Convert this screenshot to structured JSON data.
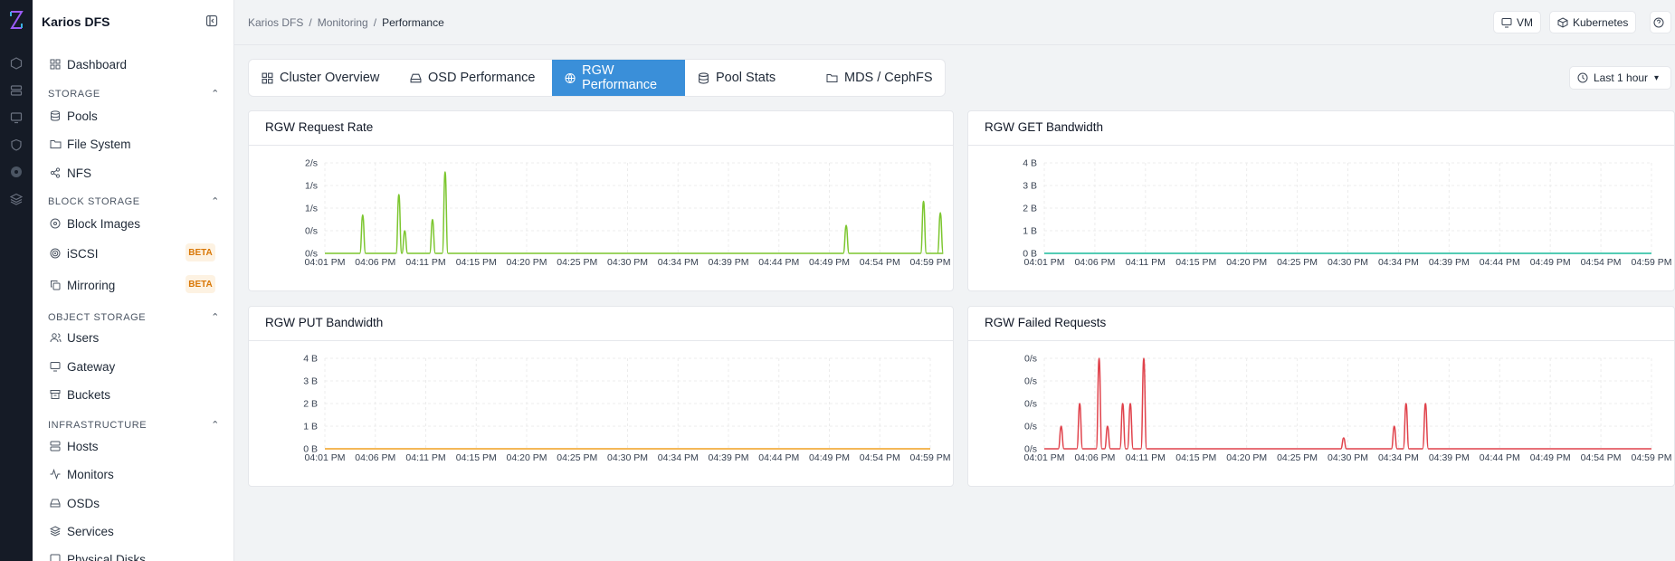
{
  "sidebar": {
    "brand": "Karios DFS",
    "dashboard": "Dashboard",
    "sections": [
      {
        "title": "STORAGE",
        "items": [
          "Pools",
          "File System",
          "NFS"
        ]
      },
      {
        "title": "BLOCK STORAGE",
        "items": [
          "Block Images",
          "iSCSI",
          "Mirroring"
        ]
      },
      {
        "title": "OBJECT STORAGE",
        "items": [
          "Users",
          "Gateway",
          "Buckets"
        ]
      },
      {
        "title": "INFRASTRUCTURE",
        "items": [
          "Hosts",
          "Monitors",
          "OSDs",
          "Services",
          "Physical Disks"
        ]
      }
    ],
    "beta_label": "BETA"
  },
  "header": {
    "breadcrumb": [
      "Karios DFS",
      "Monitoring",
      "Performance"
    ],
    "sep": "/",
    "vm_label": "VM",
    "k8s_label": "Kubernetes"
  },
  "tabs": [
    "Cluster Overview",
    "OSD Performance",
    "RGW Performance",
    "Pool Stats",
    "MDS / CephFS"
  ],
  "time_range": "Last 1 hour",
  "x_labels": [
    "04:01 PM",
    "04:06 PM",
    "04:11 PM",
    "04:15 PM",
    "04:20 PM",
    "04:25 PM",
    "04:30 PM",
    "04:34 PM",
    "04:39 PM",
    "04:44 PM",
    "04:49 PM",
    "04:54 PM",
    "04:59 PM"
  ],
  "chart_data": [
    {
      "type": "line",
      "title": "RGW Request Rate",
      "color": "#7cc62f",
      "y_ticks": [
        "0/s",
        "0/s",
        "1/s",
        "1/s",
        "2/s"
      ],
      "ylim": [
        0,
        2
      ],
      "series": [
        {
          "values": [
            [
              4.5,
              0.85
            ],
            [
              8.8,
              1.3
            ],
            [
              9.5,
              0.5
            ],
            [
              12.8,
              0.75
            ],
            [
              14.3,
              1.8
            ],
            [
              62.0,
              0.62
            ],
            [
              71.2,
              1.15
            ],
            [
              73.2,
              0.9
            ]
          ]
        }
      ]
    },
    {
      "type": "line",
      "title": "RGW GET Bandwidth",
      "color": "#1abc9c",
      "y_ticks": [
        "0 B",
        "1 B",
        "2 B",
        "3 B",
        "4 B"
      ],
      "ylim": [
        0,
        4
      ],
      "series": [
        {
          "values": []
        }
      ]
    },
    {
      "type": "line",
      "title": "RGW PUT Bandwidth",
      "color": "#f0a020",
      "y_ticks": [
        "0 B",
        "1 B",
        "2 B",
        "3 B",
        "4 B"
      ],
      "ylim": [
        0,
        4
      ],
      "series": [
        {
          "values": []
        }
      ]
    },
    {
      "type": "line",
      "title": "RGW Failed Requests",
      "color": "#e0424b",
      "y_ticks": [
        "0/s",
        "0/s",
        "0/s",
        "0/s",
        "0/s"
      ],
      "ylim": [
        0,
        1
      ],
      "series": [
        {
          "values": [
            [
              2.0,
              0.25
            ],
            [
              4.2,
              0.5
            ],
            [
              6.5,
              1.0
            ],
            [
              7.5,
              0.25
            ],
            [
              9.3,
              0.5
            ],
            [
              10.2,
              0.5
            ],
            [
              11.8,
              1.0
            ],
            [
              35.5,
              0.12
            ],
            [
              41.5,
              0.25
            ],
            [
              42.9,
              0.5
            ],
            [
              45.2,
              0.5
            ]
          ]
        }
      ]
    }
  ]
}
